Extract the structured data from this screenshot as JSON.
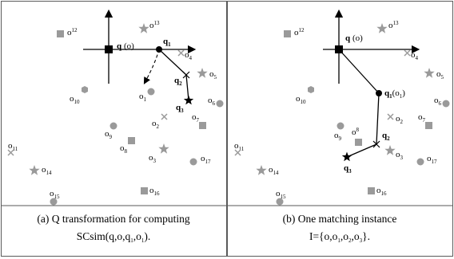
{
  "panels": [
    {
      "caption_line1": "(a) Q transformation for computing",
      "caption_line2": "SCsim(q,o,q",
      "caption_sub_a": "1",
      "caption_mid": ",o",
      "caption_sub_b": "1",
      "caption_end": ").",
      "query_label": "q",
      "query_origin": "(o)",
      "q_label": "q",
      "objects": {
        "o1": "o",
        "o2": "o",
        "o3": "o",
        "o4": "o",
        "o5": "o",
        "o6": "o",
        "o7": "o",
        "o8": "o",
        "o9": "o",
        "o10": "o",
        "o11": "o",
        "o12": "o",
        "o13": "o",
        "o14": "o",
        "o15": "o",
        "o16": "o",
        "o17": "o"
      },
      "subs": {
        "o1": "1",
        "o2": "2",
        "o3": "3",
        "o4": "4",
        "o5": "5",
        "o6": "6",
        "o7": "7",
        "o8": "8",
        "o9": "9",
        "o10": "10",
        "o11": "11",
        "o12": "12",
        "o13": "13",
        "o14": "14",
        "o15": "15",
        "o16": "16",
        "o17": "17",
        "q1": "1",
        "q2": "2",
        "q3": "3"
      }
    },
    {
      "caption_line1": "(b) One matching instance",
      "caption_line2": "I={o,o",
      "caption_sub_a": "1",
      "caption_mid": ",o",
      "caption_sub_b": "2",
      "caption_mid2": ",o",
      "caption_sub_c": "3",
      "caption_end": "}.",
      "query_label": "q",
      "query_origin": "(o)",
      "q1_origin": "(o",
      "q1_origin_sub": "1",
      "q1_origin_end": ")"
    }
  ],
  "colors": {
    "object_gray": "#9a9a9a",
    "border": "#5a5a5a",
    "ink": "#000000"
  }
}
